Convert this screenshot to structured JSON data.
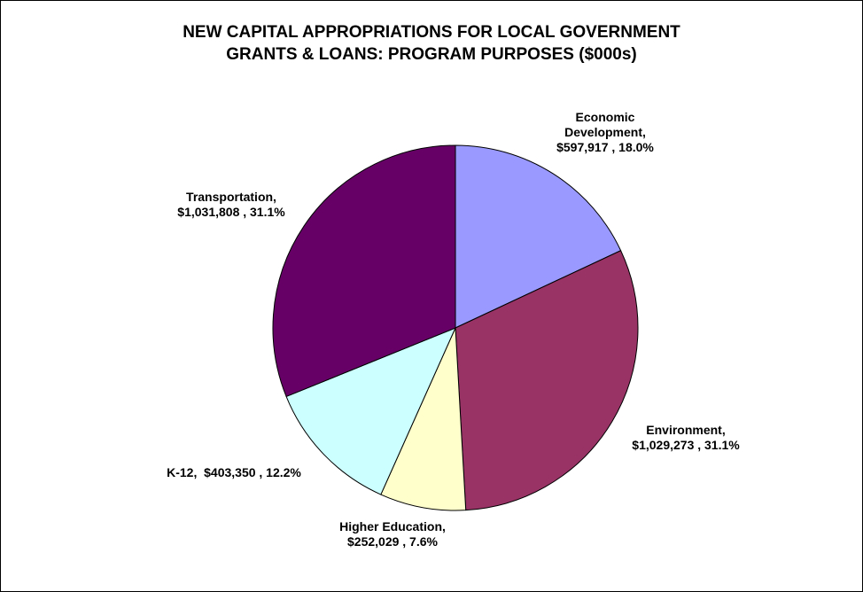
{
  "chart_data": {
    "type": "pie",
    "title": "NEW CAPITAL APPROPRIATIONS FOR LOCAL GOVERNMENT GRANTS & LOANS: PROGRAM PURPOSES ($000s)",
    "title_lines": [
      "NEW CAPITAL APPROPRIATIONS FOR LOCAL GOVERNMENT",
      "GRANTS & LOANS: PROGRAM PURPOSES ($000s)"
    ],
    "start_angle_deg": 0,
    "direction": "clockwise",
    "legend": "none",
    "slices": [
      {
        "category": "Economic Development",
        "value": 597917,
        "percent": 18.0,
        "color": "#9999ff",
        "label_lines": [
          "Economic",
          "Development,",
          "$597,917 , 18.0%"
        ]
      },
      {
        "category": "Environment",
        "value": 1029273,
        "percent": 31.1,
        "color": "#993366",
        "label_lines": [
          "Environment,",
          "$1,029,273 , 31.1%"
        ]
      },
      {
        "category": "Higher Education",
        "value": 252029,
        "percent": 7.6,
        "color": "#ffffcc",
        "label_lines": [
          "Higher Education,",
          "$252,029 , 7.6%"
        ]
      },
      {
        "category": "K-12",
        "value": 403350,
        "percent": 12.2,
        "color": "#ccffff",
        "label_lines": [
          "K-12,  $403,350 , 12.2%"
        ]
      },
      {
        "category": "Transportation",
        "value": 1031808,
        "percent": 31.1,
        "color": "#660066",
        "label_lines": [
          "Transportation,",
          "$1,031,808 , 31.1%"
        ]
      }
    ]
  }
}
